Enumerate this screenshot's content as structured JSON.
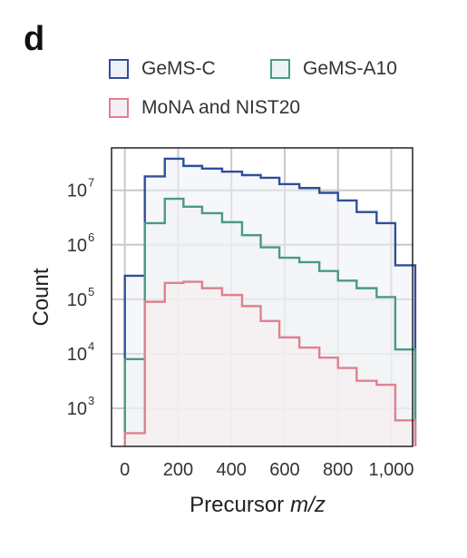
{
  "panel_label": "d",
  "chart_data": {
    "type": "histogram",
    "xlabel": "Precursor",
    "xlabel_italic": "m/z",
    "ylabel": "Count",
    "x_ticks": [
      0,
      200,
      400,
      600,
      800,
      1000
    ],
    "x_tick_labels": [
      "0",
      "200",
      "400",
      "600",
      "800",
      "1,000"
    ],
    "xlim": [
      -50,
      1080
    ],
    "y_scale": "log",
    "y_ticks": [
      1000,
      10000,
      100000,
      1000000,
      10000000
    ],
    "y_tick_base": "10",
    "y_tick_exponents": [
      "3",
      "4",
      "5",
      "6",
      "7"
    ],
    "ylim": [
      200,
      60000000
    ],
    "grid": true,
    "legend_position": "top",
    "bin_edges": [
      0,
      75,
      150,
      220,
      290,
      365,
      440,
      510,
      580,
      655,
      730,
      800,
      870,
      945,
      1015,
      1090
    ],
    "series": [
      {
        "name": "GeMS-C",
        "color": "#2f4f9a",
        "fill": "#eef1f7",
        "values": [
          270000,
          18000000,
          38000000,
          28000000,
          25000000,
          22000000,
          19000000,
          17000000,
          13000000,
          11000000,
          9000000,
          6500000,
          4000000,
          2500000,
          420000
        ]
      },
      {
        "name": "GeMS-A10",
        "color": "#4a9a85",
        "fill": "#eef3f3",
        "values": [
          8000,
          2500000,
          7000000,
          5000000,
          3800000,
          2600000,
          1500000,
          900000,
          580000,
          480000,
          330000,
          220000,
          160000,
          110000,
          12000
        ]
      },
      {
        "name": "MoNA and NIST20",
        "color": "#e08090",
        "fill": "#f7eef1",
        "values": [
          350,
          90000,
          200000,
          210000,
          160000,
          120000,
          75000,
          40000,
          20000,
          13000,
          8500,
          5500,
          3200,
          2700,
          600
        ]
      }
    ]
  }
}
